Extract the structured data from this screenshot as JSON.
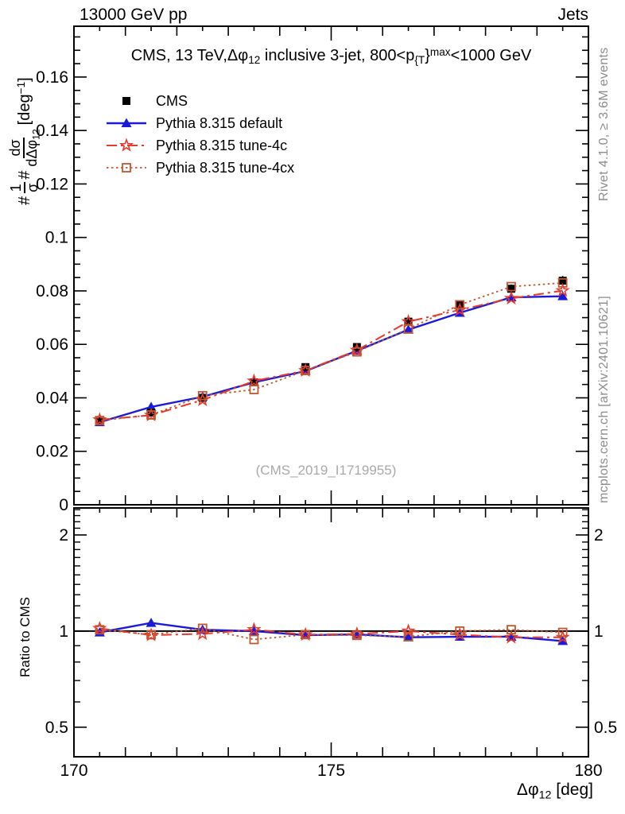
{
  "header": {
    "left": "13000 GeV pp",
    "right": "Jets"
  },
  "title_parts": [
    {
      "t": "CMS, 13 TeV,"
    },
    {
      "t": "Δφ"
    },
    {
      "t": "12",
      "style": "sub"
    },
    {
      "t": " inclusive 3-jet, 800<p"
    },
    {
      "t": "{T",
      "style": "sub"
    },
    {
      "t": "}"
    },
    {
      "t": "max",
      "style": "sup"
    },
    {
      "t": "<1000 GeV"
    }
  ],
  "watermark": "(CMS_2019_I1719955)",
  "side_notes": {
    "top": "Rivet 4.1.0, ≥ 3.6M events",
    "bottom": "mcplots.cern.ch [arXiv:2401.10621]"
  },
  "ylabel_main": {
    "hash1": "#",
    "frac1_num": "1",
    "frac1_den": "σ",
    "hash2": "#",
    "frac2_num": "dσ",
    "frac2_den": "dΔφ",
    "frac2_den_sub": "12",
    "unit_open": " [deg",
    "unit_sup": "−1",
    "unit_close": "]"
  },
  "xlabel": {
    "phi": "Δφ",
    "sub": "12",
    "unit": " [deg]"
  },
  "chart_data": {
    "type": "line",
    "title": "CMS, 13 TeV, Δφ12 inclusive 3-jet, 800<pT,max<1000 GeV",
    "xlabel": "Δφ12 [deg]",
    "ylabel": "1/σ dσ/dΔφ12 [deg−1]",
    "ratio_ylabel": "Ratio to CMS",
    "xlim": [
      170,
      180
    ],
    "main_ylim": [
      0,
      0.179
    ],
    "grid": false,
    "legend_position": "top-left",
    "x": [
      170.5,
      171.5,
      172.5,
      173.5,
      174.5,
      175.5,
      176.5,
      177.5,
      178.5,
      179.5
    ],
    "x_ticks_labeled": [
      170,
      175,
      180
    ],
    "x_ticks_medium_step": 1,
    "x_ticks_minor_step": 0.5,
    "y_ticks_labeled": [
      0,
      0.02,
      0.04,
      0.06,
      0.08,
      0.1,
      0.12,
      0.14,
      0.16
    ],
    "y_ticks_minor_step": 0.005,
    "series": [
      {
        "name": "CMS",
        "role": "data",
        "color": "#000000",
        "marker": "square-filled",
        "line": "none",
        "values": [
          0.0312,
          0.0345,
          0.04,
          0.0458,
          0.0515,
          0.059,
          0.0685,
          0.0748,
          0.0808,
          0.0838
        ],
        "yerr": [
          0.0008,
          0.0008,
          0.0009,
          0.0009,
          0.001,
          0.001,
          0.0012,
          0.0014,
          0.0016,
          0.0018
        ]
      },
      {
        "name": "Pythia 8.315 default",
        "role": "mc",
        "color": "#1a1ad9",
        "marker": "triangle-filled",
        "line": "solid",
        "values": [
          0.0309,
          0.0366,
          0.0404,
          0.0458,
          0.05,
          0.0576,
          0.0655,
          0.0718,
          0.0776,
          0.078
        ]
      },
      {
        "name": "Pythia 8.315 tune-4c",
        "role": "mc",
        "color": "#e8392c",
        "marker": "star-open",
        "line": "dashdot",
        "values": [
          0.0318,
          0.0335,
          0.0392,
          0.0463,
          0.0502,
          0.0578,
          0.0685,
          0.0729,
          0.0772,
          0.0801
        ]
      },
      {
        "name": "Pythia 8.315 tune-4cx",
        "role": "mc",
        "color": "#c2562f",
        "marker": "square-open",
        "line": "dotted",
        "values": [
          0.0315,
          0.0336,
          0.0408,
          0.0431,
          0.0502,
          0.0572,
          0.0658,
          0.0748,
          0.0816,
          0.083
        ]
      }
    ],
    "ratio_panel": {
      "scale": "log",
      "ylim": [
        0.404,
        2.43
      ],
      "ticks_labeled": [
        0.5,
        1,
        2
      ],
      "ticks_minor": [
        0.6,
        0.7,
        0.8,
        0.9,
        1.1,
        1.2,
        1.3,
        1.4,
        1.5,
        1.6,
        1.7,
        1.8,
        1.9,
        2.1,
        2.2,
        2.3,
        2.4
      ],
      "reference_line": 1,
      "reference_series": "CMS"
    }
  }
}
